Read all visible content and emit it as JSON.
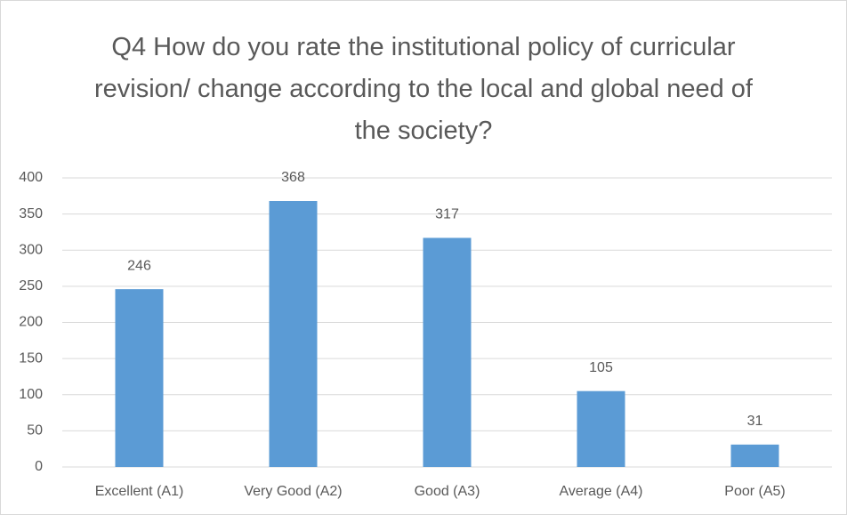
{
  "chart_data": {
    "type": "bar",
    "title": "Q4 How do you rate the institutional policy of curricular revision/ change according to the local and global need of the society?",
    "categories": [
      "Excellent (A1)",
      "Very Good (A2)",
      "Good (A3)",
      "Average (A4)",
      "Poor (A5)"
    ],
    "values": [
      246,
      368,
      317,
      105,
      31
    ],
    "color": "#5b9bd5",
    "ylim": [
      0,
      400
    ],
    "yticks": [
      0,
      50,
      100,
      150,
      200,
      250,
      300,
      350,
      400
    ],
    "grid": true,
    "data_labels": true
  }
}
